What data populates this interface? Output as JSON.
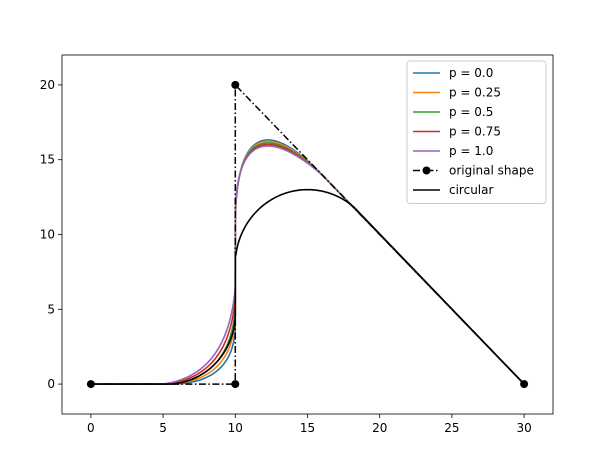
{
  "chart_data": {
    "type": "line",
    "title": "",
    "xlabel": "",
    "ylabel": "",
    "xlim": [
      -2,
      32
    ],
    "ylim": [
      -2,
      22
    ],
    "xticks": [
      0,
      5,
      10,
      15,
      20,
      25,
      30
    ],
    "yticks": [
      0,
      5,
      10,
      15,
      20
    ],
    "grid": false,
    "legend_position": "top-right",
    "series": [
      {
        "name": "p = 0.0",
        "color": "#1f77b4",
        "p": 0.0
      },
      {
        "name": "p = 0.25",
        "color": "#ff7f0e",
        "p": 0.25
      },
      {
        "name": "p = 0.5",
        "color": "#2ca02c",
        "p": 0.5
      },
      {
        "name": "p = 0.75",
        "color": "#d62728",
        "p": 0.75
      },
      {
        "name": "p = 1.0",
        "color": "#9467bd",
        "p": 1.0
      },
      {
        "name": "original shape",
        "color": "#000000",
        "style": "dash-dot",
        "marker": "circle",
        "x": [
          0,
          10,
          10,
          30
        ],
        "y": [
          0,
          0,
          20,
          0
        ]
      },
      {
        "name": "circular",
        "color": "#000000",
        "p": "circular"
      }
    ]
  }
}
